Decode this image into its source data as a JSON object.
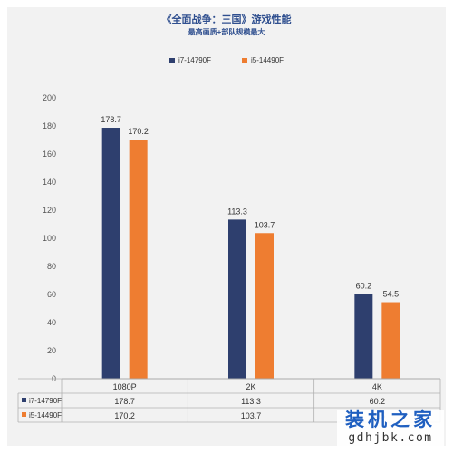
{
  "chart_data": {
    "type": "bar",
    "title": "《全面战争：三国》游戏性能",
    "subtitle": "最高画质+部队规模最大",
    "categories": [
      "1080P",
      "2K",
      "4K"
    ],
    "series": [
      {
        "name": "i7-14790F",
        "values": [
          178.7,
          113.3,
          60.2
        ],
        "color": "#2e3f6e"
      },
      {
        "name": "i5-14490F",
        "values": [
          170.2,
          103.7,
          54.5
        ],
        "color": "#ee7d31"
      }
    ],
    "ylim": [
      0,
      200
    ],
    "yticks": [
      0,
      20,
      40,
      60,
      80,
      100,
      120,
      140,
      160,
      180,
      200
    ],
    "xlabel": "",
    "ylabel": "",
    "grid": false,
    "legend_position": "top",
    "data_table": true
  },
  "watermark": {
    "brand": "装机之家",
    "url": "gdhjbk.com"
  }
}
